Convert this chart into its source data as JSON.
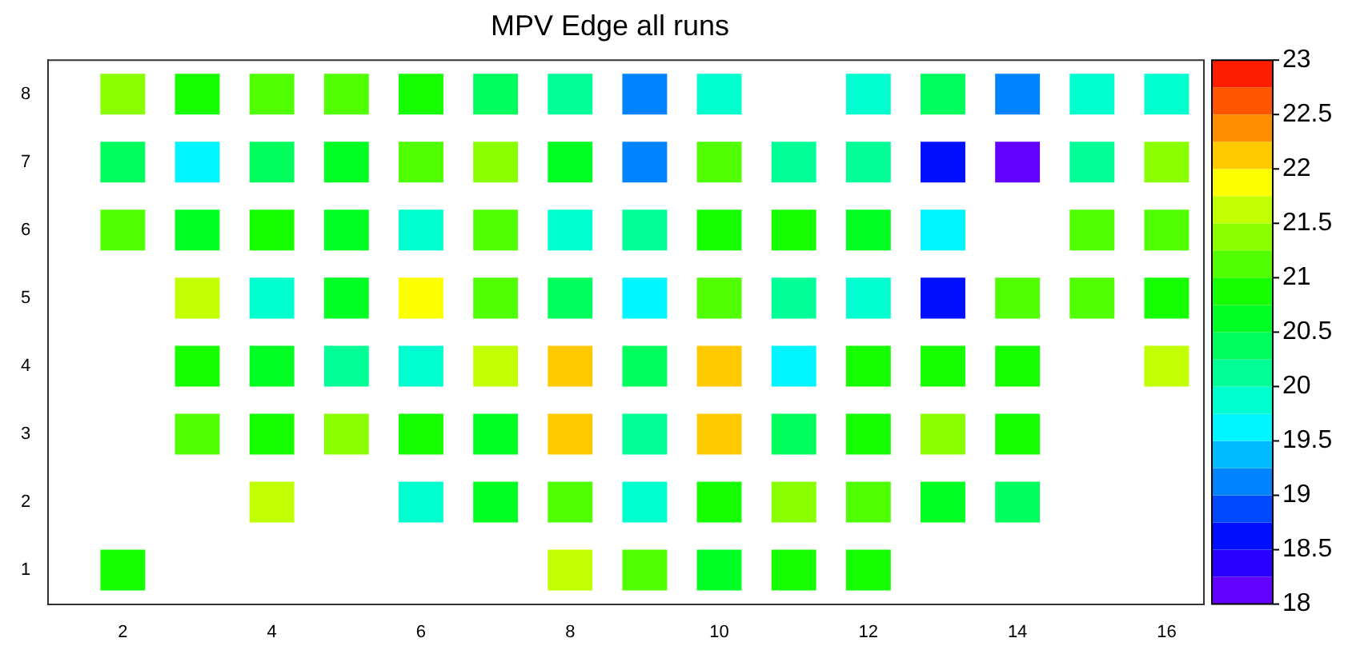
{
  "chart_data": {
    "type": "heatmap",
    "title": "MPV Edge all runs",
    "categories": [
      "2",
      null,
      "4",
      null,
      "6",
      null,
      "8",
      null,
      "10",
      null,
      "12",
      null,
      "14",
      null,
      "16"
    ],
    "y_categories": [
      "8",
      "7",
      "6",
      "5",
      "4",
      "3",
      "2",
      "1"
    ],
    "cells": [
      [
        21.4,
        20.9,
        21.1,
        21.1,
        20.9,
        20.4,
        20.1,
        19.2,
        19.9,
        null,
        19.9,
        20.4,
        19.2,
        19.9,
        19.9
      ],
      [
        20.4,
        19.6,
        20.4,
        20.6,
        21.2,
        21.3,
        20.6,
        19.1,
        21.2,
        20.2,
        20.1,
        18.6,
        18.1,
        20.2,
        21.3
      ],
      [
        21.0,
        20.6,
        20.9,
        20.5,
        19.9,
        21.1,
        19.9,
        20.0,
        20.9,
        20.8,
        20.6,
        19.7,
        null,
        21.2,
        21.0
      ],
      [
        null,
        21.5,
        19.9,
        20.6,
        21.8,
        21.1,
        20.4,
        19.7,
        21.0,
        20.1,
        19.9,
        18.6,
        21.1,
        21.0,
        20.8
      ],
      [
        null,
        20.9,
        20.6,
        20.2,
        19.9,
        21.6,
        22.2,
        20.4,
        22.0,
        19.7,
        20.9,
        20.9,
        20.9,
        null,
        21.7
      ],
      [
        null,
        21.2,
        20.9,
        21.3,
        20.8,
        20.6,
        22.0,
        20.0,
        22.2,
        20.3,
        20.8,
        21.3,
        20.8,
        null,
        null
      ],
      [
        null,
        null,
        21.5,
        null,
        19.9,
        20.5,
        21.1,
        19.9,
        20.9,
        21.3,
        21.1,
        20.5,
        20.4,
        null,
        null
      ],
      [
        20.9,
        null,
        null,
        null,
        null,
        null,
        21.6,
        21.1,
        20.6,
        20.9,
        20.9,
        null,
        null,
        null,
        null
      ]
    ],
    "clim": [
      18,
      23
    ],
    "cticks": [
      18,
      18.5,
      19,
      19.5,
      20,
      20.5,
      21,
      21.5,
      22,
      22.5,
      23
    ]
  }
}
